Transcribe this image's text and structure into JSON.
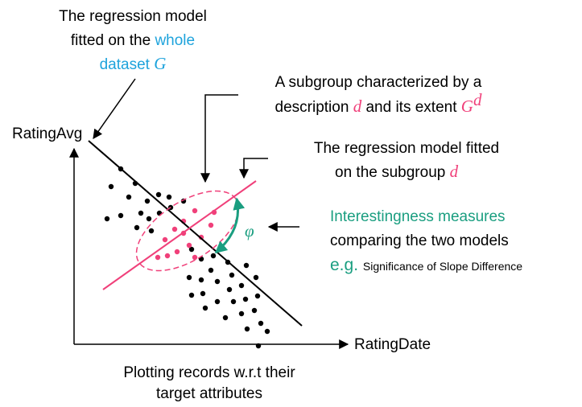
{
  "notes": {
    "whole_model": {
      "line1": "The regression model",
      "line2_a": "fitted on the ",
      "line2_b": "whole",
      "line3_a": "dataset ",
      "line3_b": "G"
    },
    "subgroup": {
      "line1": "A subgroup characterized by a",
      "line2_a": "description ",
      "line2_b": "d",
      "line2_c": " and its extent ",
      "line2_d": "G",
      "line2_e": "d"
    },
    "subgroup_model": {
      "line1": "The regression model fitted",
      "line2_a": "on the subgroup ",
      "line2_b": "d"
    },
    "measures": {
      "line1": "Interestingness measures",
      "line2": "comparing the two models",
      "line3_a": "e.g. ",
      "line3_b": "Significance of Slope Difference"
    },
    "angle": "φ",
    "caption": {
      "line1": "Plotting records w.r.t their",
      "line2": "target attributes"
    }
  },
  "axes": {
    "y_label": "RatingAvg",
    "x_label": "RatingDate"
  }
}
